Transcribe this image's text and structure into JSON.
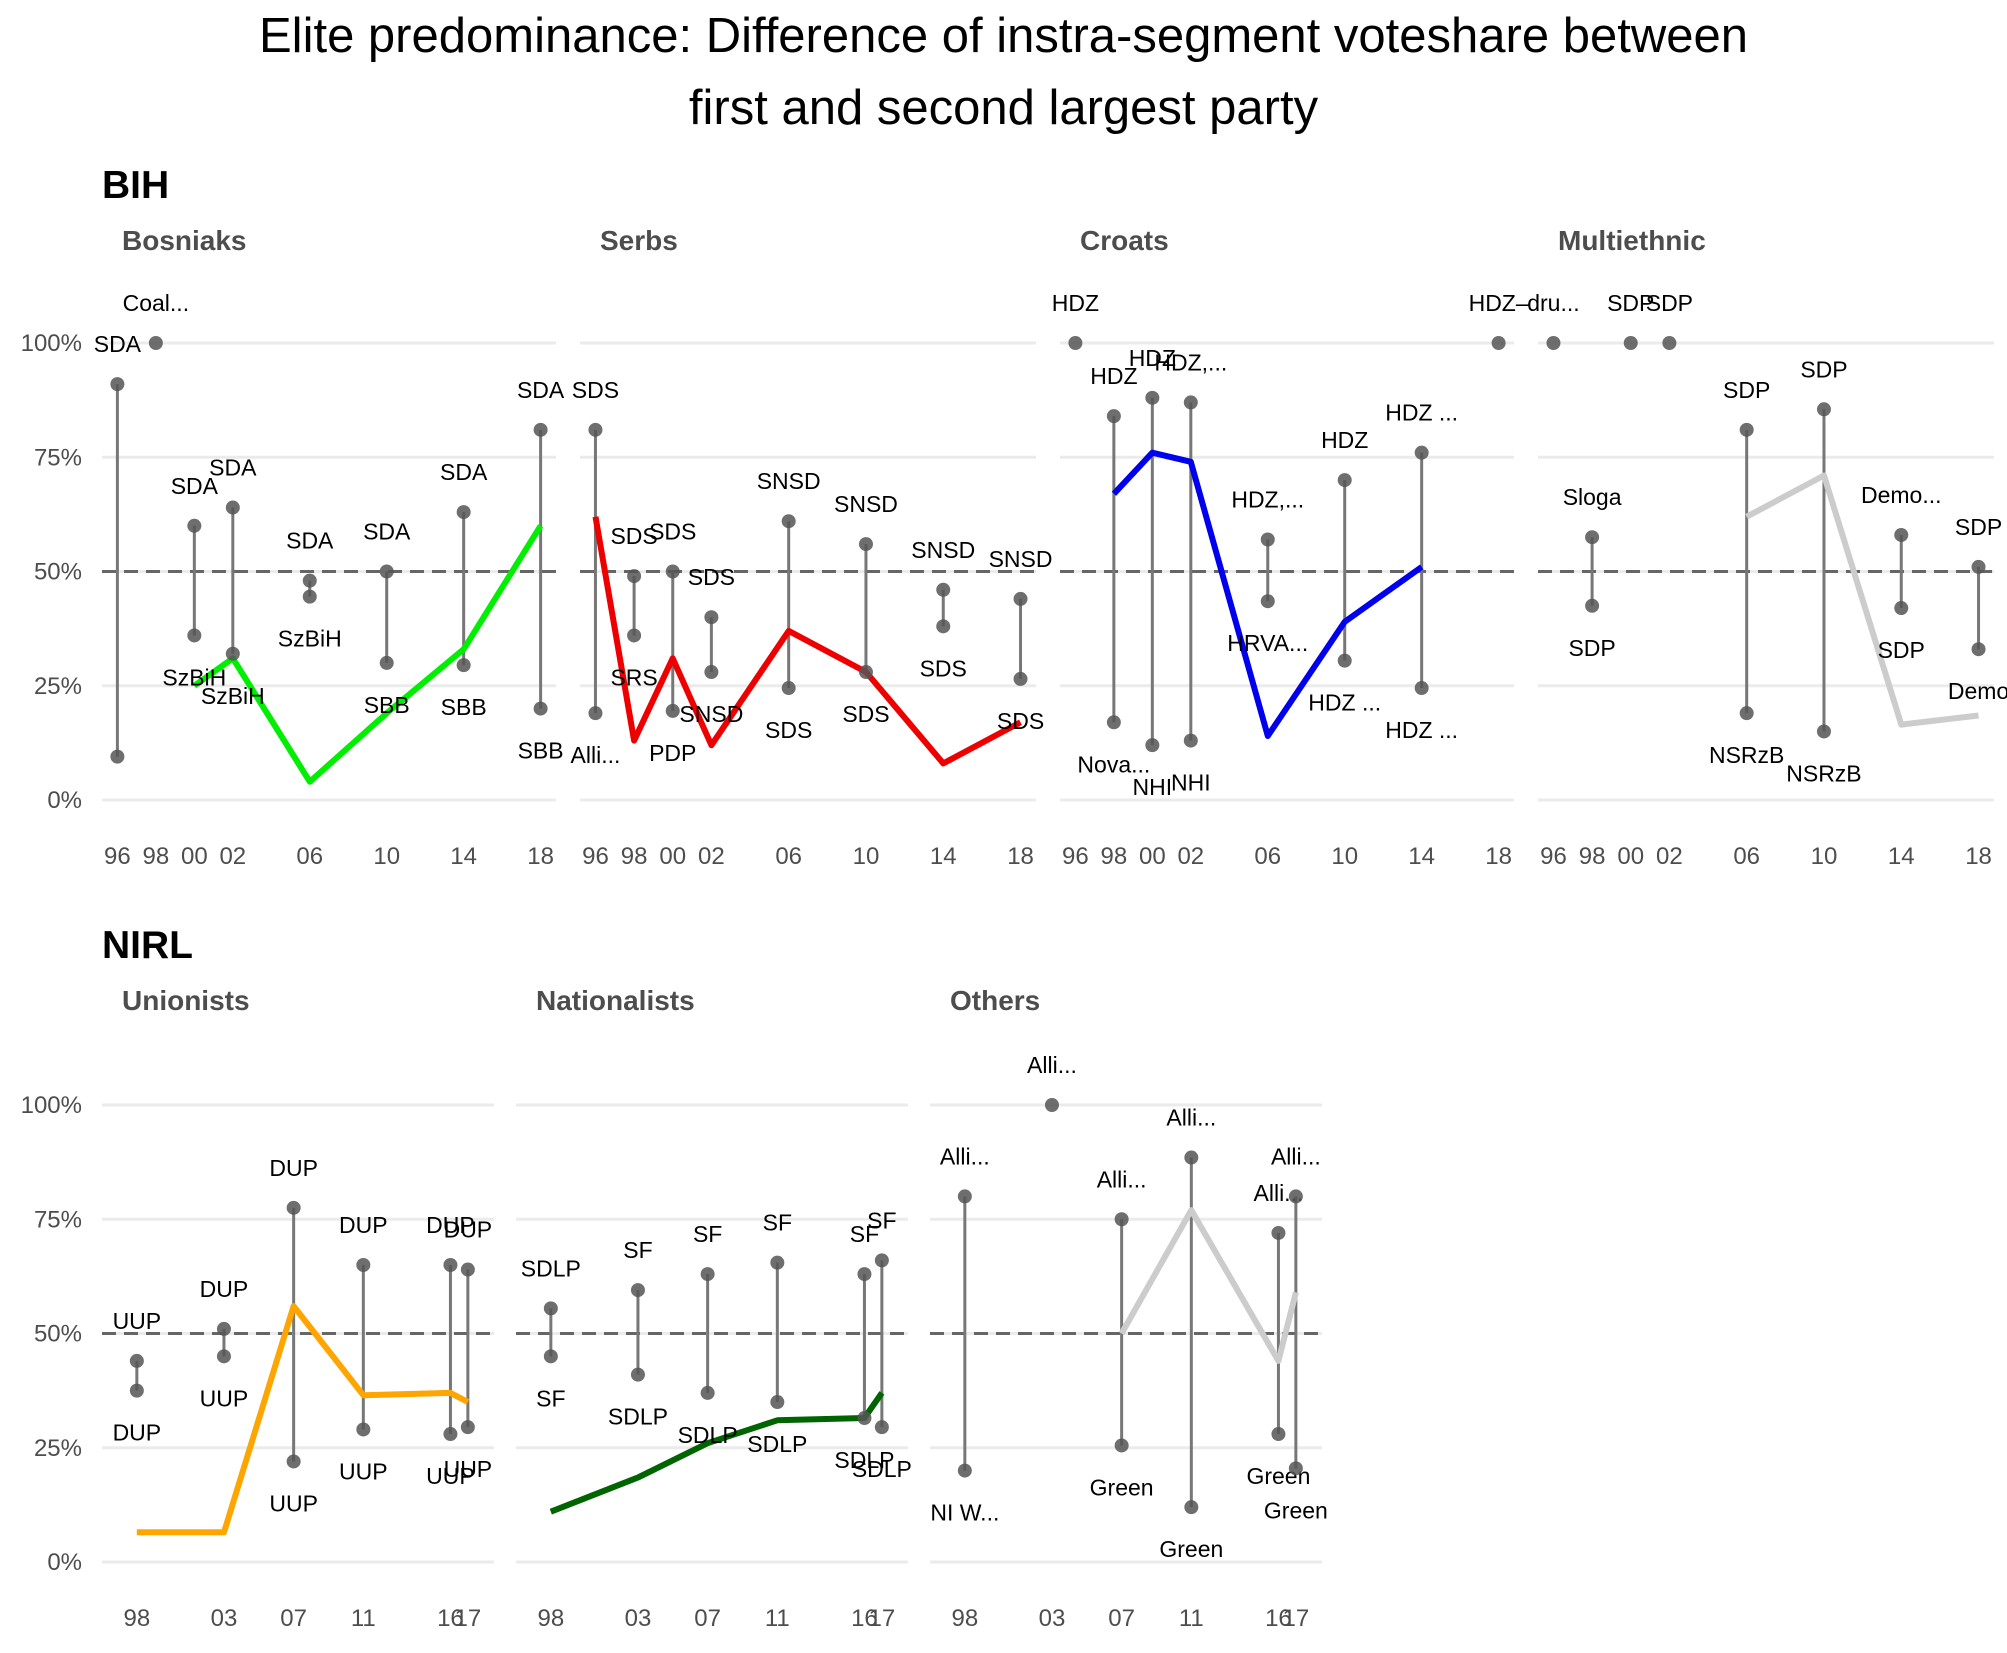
{
  "title_lines": [
    "Elite predominance: Difference of instra-segment voteshare between",
    "first and second largest party"
  ],
  "y_axis": {
    "ticks": [
      0,
      25,
      50,
      75,
      100
    ],
    "tick_labels": [
      "0%",
      "25%",
      "50%",
      "75%",
      "100%"
    ],
    "reference_line": 50
  },
  "colors": {
    "Bosniaks": "#00ee00",
    "Serbs": "#ee0000",
    "Croats": "#0000ee",
    "Multiethnic": "#cccccc",
    "Unionists": "#ffa500",
    "Nationalists": "#006400",
    "Others": "#cccccc",
    "points": "#555555",
    "grid": "#ebebeb"
  },
  "chart_data": [
    {
      "type": "dumbbell-line",
      "country": "BIH",
      "segment": "Bosniaks",
      "x_ticks": [
        [
          "96",
          1996
        ],
        [
          "98",
          1998
        ],
        [
          "00",
          2000
        ],
        [
          "02",
          2002
        ],
        [
          "06",
          2006
        ],
        [
          "10",
          2010
        ],
        [
          "14",
          2014
        ],
        [
          "18",
          2018
        ]
      ],
      "x_range": [
        1995.2,
        2018.8
      ],
      "points": [
        {
          "x": 1996,
          "hi": 91,
          "lo": 9.5,
          "hi_label": "SDA",
          "lo_label": ""
        },
        {
          "x": 1998,
          "hi": 100,
          "lo": null,
          "hi_label": "Coal...",
          "lo_label": ""
        },
        {
          "x": 2000,
          "hi": 60,
          "lo": 36,
          "hi_label": "SDA",
          "lo_label": "SzBiH"
        },
        {
          "x": 2002,
          "hi": 64,
          "lo": 32,
          "hi_label": "SDA",
          "lo_label": "SzBiH"
        },
        {
          "x": 2006,
          "hi": 48,
          "lo": 44.5,
          "hi_label": "SDA",
          "lo_label": "SzBiH"
        },
        {
          "x": 2010,
          "hi": 50,
          "lo": 30,
          "hi_label": "SDA",
          "lo_label": "SBB"
        },
        {
          "x": 2014,
          "hi": 63,
          "lo": 29.5,
          "hi_label": "SDA",
          "lo_label": "SBB"
        },
        {
          "x": 2018,
          "hi": 81,
          "lo": 20,
          "hi_label": "SDA",
          "lo_label": "SBB"
        }
      ],
      "line": [
        [
          2000,
          25
        ],
        [
          2002,
          31
        ],
        [
          2006,
          4
        ],
        [
          2010,
          19
        ],
        [
          2014,
          33
        ],
        [
          2018,
          60
        ]
      ]
    },
    {
      "type": "dumbbell-line",
      "country": "BIH",
      "segment": "Serbs",
      "x_ticks": [
        [
          "96",
          1996
        ],
        [
          "98",
          1998
        ],
        [
          "00",
          2000
        ],
        [
          "02",
          2002
        ],
        [
          "06",
          2006
        ],
        [
          "10",
          2010
        ],
        [
          "14",
          2014
        ],
        [
          "18",
          2018
        ]
      ],
      "x_range": [
        1995.2,
        2018.8
      ],
      "points": [
        {
          "x": 1996,
          "hi": 81,
          "lo": 19,
          "hi_label": "SDS",
          "lo_label": "Alli..."
        },
        {
          "x": 1998,
          "hi": 49,
          "lo": 36,
          "hi_label": "SDS",
          "lo_label": "SRS"
        },
        {
          "x": 2000,
          "hi": 50,
          "lo": 19.5,
          "hi_label": "SDS",
          "lo_label": "PDP"
        },
        {
          "x": 2002,
          "hi": 40,
          "lo": 28,
          "hi_label": "SDS",
          "lo_label": "SNSD"
        },
        {
          "x": 2006,
          "hi": 61,
          "lo": 24.5,
          "hi_label": "SNSD",
          "lo_label": "SDS"
        },
        {
          "x": 2010,
          "hi": 56,
          "lo": 28,
          "hi_label": "SNSD",
          "lo_label": "SDS"
        },
        {
          "x": 2014,
          "hi": 46,
          "lo": 38,
          "hi_label": "SNSD",
          "lo_label": "SDS"
        },
        {
          "x": 2018,
          "hi": 44,
          "lo": 26.5,
          "hi_label": "SNSD",
          "lo_label": "SDS"
        }
      ],
      "line": [
        [
          1996,
          62
        ],
        [
          1998,
          13
        ],
        [
          2000,
          31
        ],
        [
          2002,
          12
        ],
        [
          2006,
          37
        ],
        [
          2010,
          28
        ],
        [
          2014,
          8
        ],
        [
          2018,
          17
        ]
      ]
    },
    {
      "type": "dumbbell-line",
      "country": "BIH",
      "segment": "Croats",
      "x_ticks": [
        [
          "96",
          1996
        ],
        [
          "98",
          1998
        ],
        [
          "00",
          2000
        ],
        [
          "02",
          2002
        ],
        [
          "06",
          2006
        ],
        [
          "10",
          2010
        ],
        [
          "14",
          2014
        ],
        [
          "18",
          2018
        ]
      ],
      "x_range": [
        1995.2,
        2018.8
      ],
      "points": [
        {
          "x": 1996,
          "hi": 100,
          "lo": null,
          "hi_label": "HDZ",
          "lo_label": ""
        },
        {
          "x": 1998,
          "hi": 84,
          "lo": 17,
          "hi_label": "HDZ",
          "lo_label": "Nova..."
        },
        {
          "x": 2000,
          "hi": 88,
          "lo": 12,
          "hi_label": "HDZ",
          "lo_label": "NHI"
        },
        {
          "x": 2002,
          "hi": 87,
          "lo": 13,
          "hi_label": "HDZ,...",
          "lo_label": "NHI"
        },
        {
          "x": 2006,
          "hi": 57,
          "lo": 43.5,
          "hi_label": "HDZ,...",
          "lo_label": "HRVA..."
        },
        {
          "x": 2010,
          "hi": 70,
          "lo": 30.5,
          "hi_label": "HDZ",
          "lo_label": "HDZ ..."
        },
        {
          "x": 2014,
          "hi": 76,
          "lo": 24.5,
          "hi_label": "HDZ ...",
          "lo_label": "HDZ ..."
        },
        {
          "x": 2018,
          "hi": 100,
          "lo": null,
          "hi_label": "HDZ–",
          "lo_label": ""
        }
      ],
      "line": [
        [
          1998,
          67
        ],
        [
          2000,
          76
        ],
        [
          2002,
          74
        ],
        [
          2006,
          14
        ],
        [
          2010,
          39
        ],
        [
          2014,
          51
        ]
      ]
    },
    {
      "type": "dumbbell-line",
      "country": "BIH",
      "segment": "Multiethnic",
      "x_ticks": [
        [
          "96",
          1996
        ],
        [
          "98",
          1998
        ],
        [
          "00",
          2000
        ],
        [
          "02",
          2002
        ],
        [
          "06",
          2006
        ],
        [
          "10",
          2010
        ],
        [
          "14",
          2014
        ],
        [
          "18",
          2018
        ]
      ],
      "x_range": [
        1995.2,
        2018.8
      ],
      "points": [
        {
          "x": 1996,
          "hi": 100,
          "lo": null,
          "hi_label": "dru...",
          "lo_label": ""
        },
        {
          "x": 1998,
          "hi": 57.5,
          "lo": 42.5,
          "hi_label": "Sloga",
          "lo_label": "SDP"
        },
        {
          "x": 2000,
          "hi": 100,
          "lo": null,
          "hi_label": "SDP",
          "lo_label": ""
        },
        {
          "x": 2002,
          "hi": 100,
          "lo": null,
          "hi_label": "SDP",
          "lo_label": ""
        },
        {
          "x": 2006,
          "hi": 81,
          "lo": 19,
          "hi_label": "SDP",
          "lo_label": "NSRzB"
        },
        {
          "x": 2010,
          "hi": 85.5,
          "lo": 15,
          "hi_label": "SDP",
          "lo_label": "NSRzB"
        },
        {
          "x": 2014,
          "hi": 58,
          "lo": 42,
          "hi_label": "Demo...",
          "lo_label": "SDP"
        },
        {
          "x": 2018,
          "hi": 51,
          "lo": 33,
          "hi_label": "SDP",
          "lo_label": "Demo"
        }
      ],
      "line": [
        [
          2006,
          62
        ],
        [
          2010,
          71
        ],
        [
          2014,
          16.5
        ],
        [
          2018,
          18.5
        ]
      ]
    },
    {
      "type": "dumbbell-line",
      "country": "NIRL",
      "segment": "Unionists",
      "x_ticks": [
        [
          "98",
          1998
        ],
        [
          "03",
          2003
        ],
        [
          "07",
          2007
        ],
        [
          "11",
          2011
        ],
        [
          "16",
          2016
        ],
        [
          "17",
          2017
        ]
      ],
      "x_range": [
        1996,
        2018.5
      ],
      "points": [
        {
          "x": 1998,
          "hi": 44,
          "lo": 37.5,
          "hi_label": "UUP",
          "lo_label": "DUP"
        },
        {
          "x": 2003,
          "hi": 51,
          "lo": 45,
          "hi_label": "DUP",
          "lo_label": "UUP"
        },
        {
          "x": 2007,
          "hi": 77.5,
          "lo": 22,
          "hi_label": "DUP",
          "lo_label": "UUP"
        },
        {
          "x": 2011,
          "hi": 65,
          "lo": 29,
          "hi_label": "DUP",
          "lo_label": "UUP"
        },
        {
          "x": 2016,
          "hi": 65,
          "lo": 28,
          "hi_label": "DUP",
          "lo_label": "UUP"
        },
        {
          "x": 2017,
          "hi": 64,
          "lo": 29.5,
          "hi_label": "DUP",
          "lo_label": "UUP"
        }
      ],
      "line": [
        [
          1998,
          6.5
        ],
        [
          2003,
          6.5
        ],
        [
          2007,
          56
        ],
        [
          2011,
          36.5
        ],
        [
          2016,
          37
        ],
        [
          2017,
          35
        ]
      ]
    },
    {
      "type": "dumbbell-line",
      "country": "NIRL",
      "segment": "Nationalists",
      "x_ticks": [
        [
          "98",
          1998
        ],
        [
          "03",
          2003
        ],
        [
          "07",
          2007
        ],
        [
          "11",
          2011
        ],
        [
          "16",
          2016
        ],
        [
          "17",
          2017
        ]
      ],
      "x_range": [
        1996,
        2018.5
      ],
      "points": [
        {
          "x": 1998,
          "hi": 55.5,
          "lo": 45,
          "hi_label": "SDLP",
          "lo_label": "SF"
        },
        {
          "x": 2003,
          "hi": 59.5,
          "lo": 41,
          "hi_label": "SF",
          "lo_label": "SDLP"
        },
        {
          "x": 2007,
          "hi": 63,
          "lo": 37,
          "hi_label": "SF",
          "lo_label": "SDLP"
        },
        {
          "x": 2011,
          "hi": 65.5,
          "lo": 35,
          "hi_label": "SF",
          "lo_label": "SDLP"
        },
        {
          "x": 2016,
          "hi": 63,
          "lo": 31.5,
          "hi_label": "SF",
          "lo_label": "SDLP"
        },
        {
          "x": 2017,
          "hi": 66,
          "lo": 29.5,
          "hi_label": "SF",
          "lo_label": "SDLP"
        }
      ],
      "line": [
        [
          1998,
          11
        ],
        [
          2003,
          18.5
        ],
        [
          2007,
          26
        ],
        [
          2011,
          31
        ],
        [
          2016,
          31.5
        ],
        [
          2017,
          37
        ]
      ]
    },
    {
      "type": "dumbbell-line",
      "country": "NIRL",
      "segment": "Others",
      "x_ticks": [
        [
          "98",
          1998
        ],
        [
          "03",
          2003
        ],
        [
          "07",
          2007
        ],
        [
          "11",
          2011
        ],
        [
          "16",
          2016
        ],
        [
          "17",
          2017
        ]
      ],
      "x_range": [
        1996,
        2018.5
      ],
      "points": [
        {
          "x": 1998,
          "hi": 80,
          "lo": 20,
          "hi_label": "Alli...",
          "lo_label": "NI W..."
        },
        {
          "x": 2003,
          "hi": 100,
          "lo": null,
          "hi_label": "Alli...",
          "lo_label": ""
        },
        {
          "x": 2007,
          "hi": 75,
          "lo": 25.5,
          "hi_label": "Alli...",
          "lo_label": "Green"
        },
        {
          "x": 2011,
          "hi": 88.5,
          "lo": 12,
          "hi_label": "Alli...",
          "lo_label": "Green"
        },
        {
          "x": 2016,
          "hi": 72,
          "lo": 28,
          "hi_label": "Alli...",
          "lo_label": "Green"
        },
        {
          "x": 2017,
          "hi": 80,
          "lo": 20.5,
          "hi_label": "Alli...",
          "lo_label": "Green"
        }
      ],
      "line": [
        [
          2007,
          50
        ],
        [
          2011,
          77
        ],
        [
          2016,
          44
        ],
        [
          2017,
          59
        ]
      ]
    }
  ],
  "country_labels": [
    "BIH",
    "NIRL"
  ]
}
